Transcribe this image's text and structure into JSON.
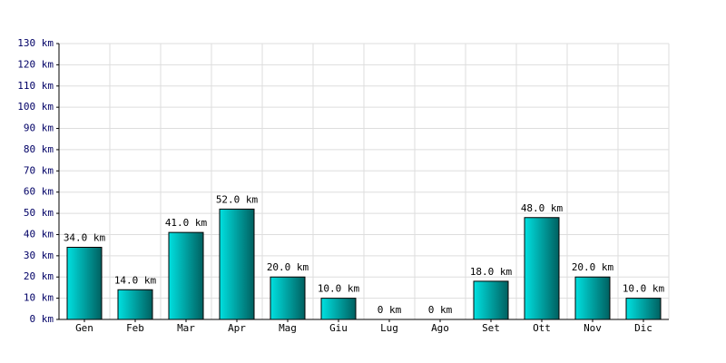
{
  "chart_data": {
    "type": "bar",
    "categories": [
      "Gen",
      "Feb",
      "Mar",
      "Apr",
      "Mag",
      "Giu",
      "Lug",
      "Ago",
      "Set",
      "Ott",
      "Nov",
      "Dic"
    ],
    "values": [
      34,
      14,
      41,
      52,
      20,
      10,
      0,
      0,
      18,
      48,
      20,
      10
    ],
    "value_labels": [
      "34.0 km",
      "14.0 km",
      "41.0 km",
      "52.0 km",
      "20.0 km",
      "10.0 km",
      "0 km",
      "0 km",
      "18.0 km",
      "48.0 km",
      "20.0 km",
      "10.0 km"
    ],
    "color": "#00e0e0",
    "ylim": [
      0,
      130
    ],
    "yticks": [
      {
        "value": 0,
        "label": "0 km"
      },
      {
        "value": 10,
        "label": "10 km"
      },
      {
        "value": 20,
        "label": "20 km"
      },
      {
        "value": 30,
        "label": "30 km"
      },
      {
        "value": 40,
        "label": "40 km"
      },
      {
        "value": 50,
        "label": "50 km"
      },
      {
        "value": 60,
        "label": "60 km"
      },
      {
        "value": 70,
        "label": "70 km"
      },
      {
        "value": 80,
        "label": "80 km"
      },
      {
        "value": 90,
        "label": "90 km"
      },
      {
        "value": 100,
        "label": "100 km"
      },
      {
        "value": 110,
        "label": "110 km"
      },
      {
        "value": 120,
        "label": "120 km"
      },
      {
        "value": 130,
        "label": "130 km"
      }
    ],
    "grid": true
  }
}
